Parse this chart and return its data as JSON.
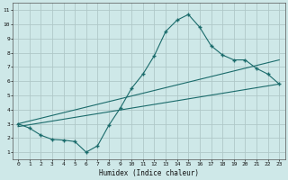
{
  "xlabel": "Humidex (Indice chaleur)",
  "bg_color": "#cee8e8",
  "grid_color": "#b0c8c8",
  "line_color": "#1a6b6b",
  "xlim": [
    -0.5,
    23.5
  ],
  "ylim": [
    0.5,
    11.5
  ],
  "xticks": [
    0,
    1,
    2,
    3,
    4,
    5,
    6,
    7,
    8,
    9,
    10,
    11,
    12,
    13,
    14,
    15,
    16,
    17,
    18,
    19,
    20,
    21,
    22,
    23
  ],
  "yticks": [
    1,
    2,
    3,
    4,
    5,
    6,
    7,
    8,
    9,
    10,
    11
  ],
  "main_x": [
    0,
    1,
    2,
    3,
    4,
    5,
    6,
    7,
    8,
    9,
    10,
    11,
    12,
    13,
    14,
    15,
    16,
    17,
    18,
    19,
    20,
    21,
    22,
    23
  ],
  "main_y": [
    3.0,
    2.7,
    2.2,
    1.9,
    1.85,
    1.75,
    1.0,
    1.45,
    2.9,
    4.1,
    5.5,
    6.5,
    7.8,
    9.5,
    10.3,
    10.7,
    9.8,
    8.5,
    7.85,
    7.5,
    7.5,
    6.9,
    6.5,
    5.8
  ],
  "line1_x": [
    0,
    23
  ],
  "line1_y": [
    3.0,
    7.5
  ],
  "line2_x": [
    0,
    23
  ],
  "line2_y": [
    2.8,
    5.8
  ]
}
